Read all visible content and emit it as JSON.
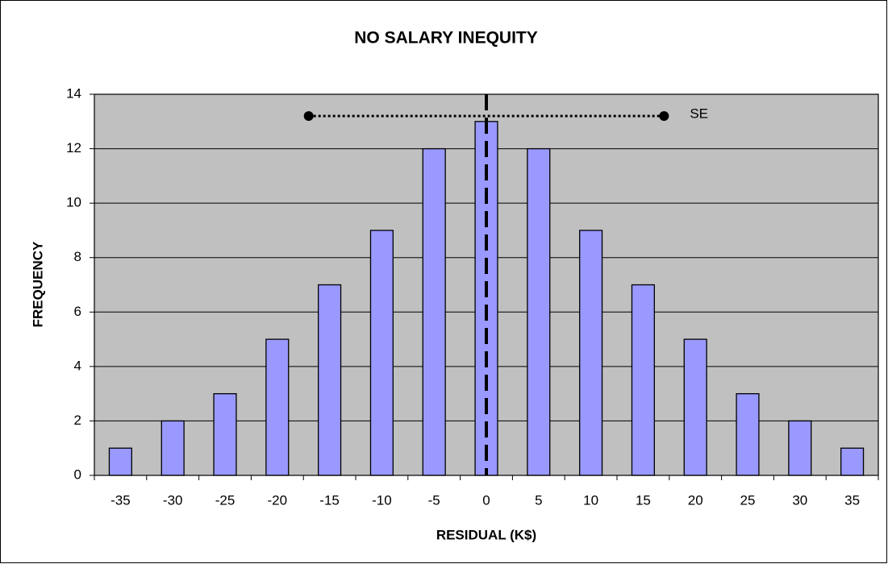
{
  "chart_data": {
    "type": "bar",
    "title": "NO SALARY INEQUITY",
    "x_label": "RESIDUAL (K$)",
    "y_label": "FREQUENCY",
    "x": [
      -35,
      -30,
      -25,
      -20,
      -15,
      -10,
      -5,
      0,
      5,
      10,
      15,
      20,
      25,
      30,
      35
    ],
    "values": [
      1,
      2,
      3,
      5,
      7,
      9,
      12,
      13,
      12,
      9,
      7,
      5,
      3,
      2,
      1
    ],
    "color": "#9999ff",
    "xlim": [
      -37.5,
      37.5
    ],
    "ylim": [
      0,
      14
    ],
    "yticks": [
      0,
      2,
      4,
      6,
      8,
      10,
      12,
      14
    ],
    "grid": true,
    "plot_background": "#c0c0c0",
    "mean_line": 0,
    "se_line": {
      "from": -17,
      "to": 17,
      "y": 13.2,
      "label": "SE"
    }
  }
}
